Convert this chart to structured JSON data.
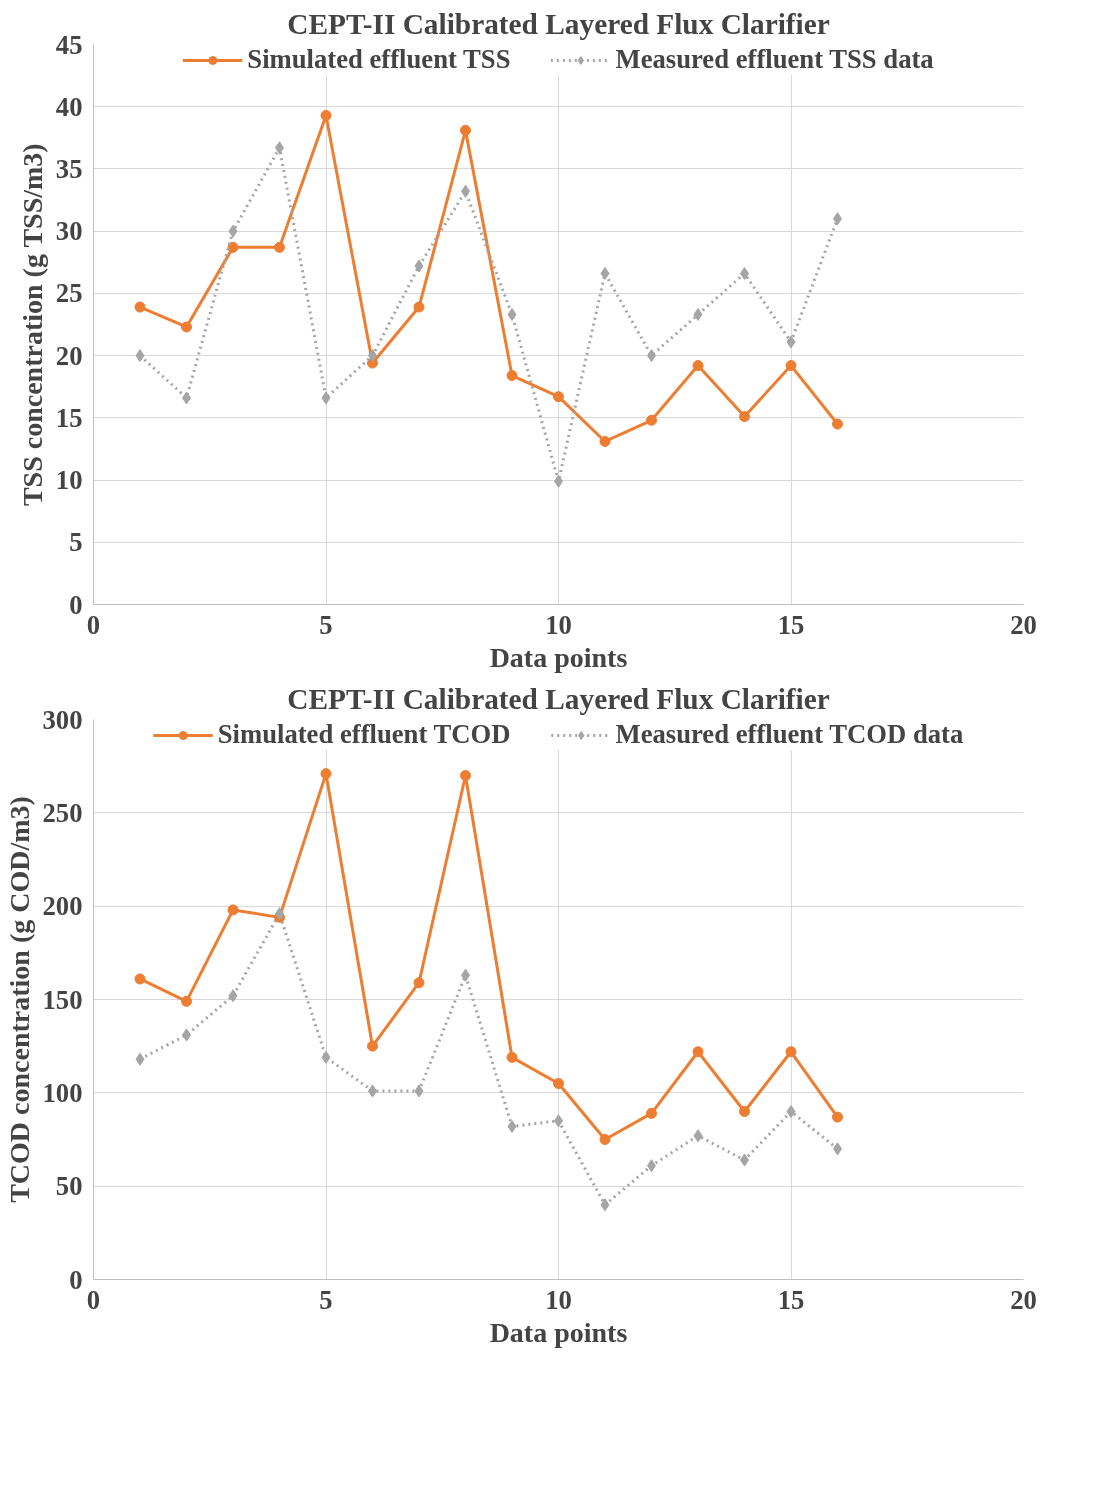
{
  "chart_data": [
    {
      "type": "line",
      "title": "CEPT-II Calibrated Layered Flux Clarifier",
      "xlabel": "Data points",
      "ylabel": "TSS concentration (g TSS/m3)",
      "xlim": [
        0,
        20
      ],
      "xticks": [
        0,
        5,
        10,
        15,
        20
      ],
      "ylim": [
        0,
        45
      ],
      "yticks": [
        0,
        5,
        10,
        15,
        20,
        25,
        30,
        35,
        40,
        45
      ],
      "grid": true,
      "legend": "top",
      "x": [
        1,
        2,
        3,
        4,
        5,
        6,
        7,
        8,
        9,
        10,
        11,
        12,
        13,
        14,
        15,
        16
      ],
      "series": [
        {
          "name": "Simulated effluent TSS",
          "color": "#ed7d31",
          "line_style": "solid",
          "marker": "circle",
          "values": [
            23.9,
            22.3,
            28.7,
            28.7,
            39.3,
            19.4,
            23.9,
            38.1,
            18.4,
            16.7,
            13.1,
            14.8,
            19.2,
            15.1,
            19.2,
            14.5
          ]
        },
        {
          "name": "Measured effluent TSS data",
          "color": "#a5a5a5",
          "line_style": "dotted",
          "marker": "diamond",
          "values": [
            20.0,
            16.6,
            30.0,
            36.7,
            16.6,
            20.0,
            27.2,
            33.2,
            23.3,
            9.9,
            26.6,
            20.0,
            23.3,
            26.6,
            21.1,
            31.0
          ]
        }
      ]
    },
    {
      "type": "line",
      "title": "CEPT-II Calibrated Layered Flux Clarifier",
      "xlabel": "Data points",
      "ylabel": "TCOD concentration (g COD/m3)",
      "xlim": [
        0,
        20
      ],
      "xticks": [
        0,
        5,
        10,
        15,
        20
      ],
      "ylim": [
        0,
        300
      ],
      "yticks": [
        0,
        50,
        100,
        150,
        200,
        250,
        300
      ],
      "grid": true,
      "legend": "top",
      "x": [
        1,
        2,
        3,
        4,
        5,
        6,
        7,
        8,
        9,
        10,
        11,
        12,
        13,
        14,
        15,
        16
      ],
      "series": [
        {
          "name": "Simulated effluent TCOD",
          "color": "#ed7d31",
          "line_style": "solid",
          "marker": "circle",
          "values": [
            161,
            149,
            198,
            194,
            271,
            125,
            159,
            270,
            119,
            105,
            75,
            89,
            122,
            90,
            122,
            87
          ]
        },
        {
          "name": "Measured effluent TCOD data",
          "color": "#a5a5a5",
          "line_style": "dotted",
          "marker": "diamond",
          "values": [
            118,
            131,
            152,
            196,
            119,
            101,
            101,
            163,
            82,
            85,
            40,
            61,
            77,
            64,
            90,
            70
          ]
        }
      ]
    }
  ]
}
